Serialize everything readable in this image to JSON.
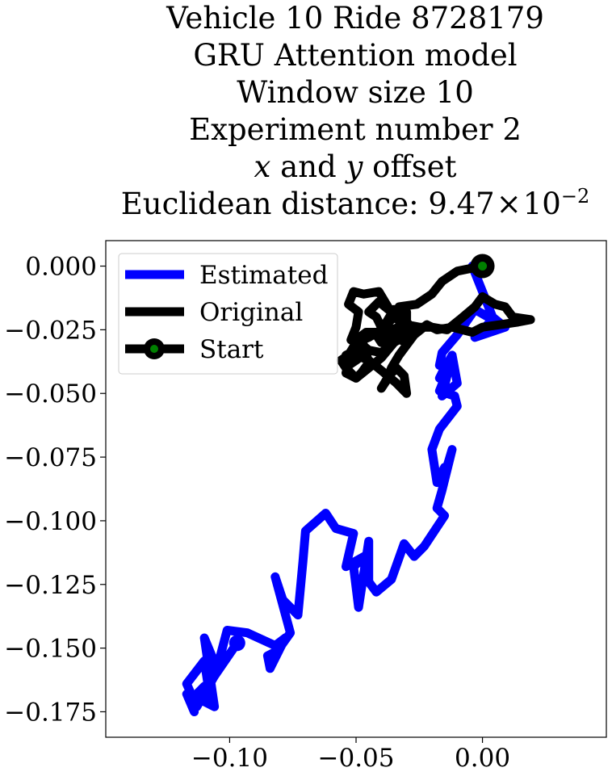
{
  "title": {
    "line1": "Vehicle 10 Ride 8728179",
    "line2": "GRU Attention model",
    "line3": "Window size 10",
    "line4": "Experiment number 2",
    "line5_x": "x",
    "line5_mid": " and ",
    "line5_y": "y",
    "line5_end": " offset",
    "line6_prefix": "Euclidean distance: 9.47",
    "line6_times": "×",
    "line6_base": "10",
    "line6_exp": "−2"
  },
  "chart_data": {
    "type": "line",
    "xlim": [
      -0.149,
      0.049
    ],
    "ylim": [
      -0.185,
      0.01
    ],
    "grid": false,
    "legend_position": "top-left",
    "x_ticks": [
      {
        "value": -0.1,
        "label": "−0.10"
      },
      {
        "value": -0.05,
        "label": "−0.05"
      },
      {
        "value": 0.0,
        "label": "0.00"
      }
    ],
    "y_ticks": [
      {
        "value": 0.0,
        "label": "0.000"
      },
      {
        "value": -0.025,
        "label": "−0.025"
      },
      {
        "value": -0.05,
        "label": "−0.050"
      },
      {
        "value": -0.075,
        "label": "−0.075"
      },
      {
        "value": -0.1,
        "label": "−0.100"
      },
      {
        "value": -0.125,
        "label": "−0.125"
      },
      {
        "value": -0.15,
        "label": "−0.150"
      },
      {
        "value": -0.175,
        "label": "−0.175"
      }
    ],
    "series": [
      {
        "name": "Estimated",
        "color": "#0000ff",
        "x": [
          0.0,
          -0.004,
          0.004,
          0.009,
          -0.003,
          0.004,
          -0.003,
          -0.01,
          -0.016,
          -0.017,
          -0.014,
          -0.017,
          -0.012,
          -0.01,
          -0.016,
          -0.015,
          -0.013,
          -0.017,
          -0.011,
          -0.01,
          -0.017,
          -0.02,
          -0.018,
          -0.015,
          -0.015,
          -0.012,
          -0.016,
          -0.018,
          -0.015,
          -0.023,
          -0.027,
          -0.031,
          -0.036,
          -0.042,
          -0.045,
          -0.045,
          -0.049,
          -0.051,
          -0.045,
          -0.054,
          -0.051,
          -0.058,
          -0.062,
          -0.07,
          -0.071,
          -0.073,
          -0.079,
          -0.082,
          -0.076,
          -0.081,
          -0.085,
          -0.084,
          -0.078,
          -0.082,
          -0.093,
          -0.101,
          -0.105,
          -0.11,
          -0.106,
          -0.112,
          -0.11,
          -0.115,
          -0.114,
          -0.117,
          -0.113,
          -0.115,
          -0.108,
          -0.11,
          -0.117,
          -0.113,
          -0.106,
          -0.097
        ],
        "y": [
          0.0,
          0.0,
          -0.02,
          -0.024,
          -0.028,
          -0.021,
          -0.017,
          -0.027,
          -0.034,
          -0.039,
          -0.038,
          -0.044,
          -0.035,
          -0.046,
          -0.051,
          -0.047,
          -0.039,
          -0.049,
          -0.051,
          -0.055,
          -0.064,
          -0.072,
          -0.085,
          -0.079,
          -0.082,
          -0.072,
          -0.088,
          -0.095,
          -0.098,
          -0.11,
          -0.114,
          -0.109,
          -0.123,
          -0.128,
          -0.124,
          -0.108,
          -0.134,
          -0.118,
          -0.113,
          -0.118,
          -0.105,
          -0.103,
          -0.097,
          -0.104,
          -0.116,
          -0.137,
          -0.131,
          -0.122,
          -0.144,
          -0.151,
          -0.153,
          -0.158,
          -0.146,
          -0.149,
          -0.144,
          -0.143,
          -0.158,
          -0.146,
          -0.173,
          -0.17,
          -0.165,
          -0.17,
          -0.175,
          -0.168,
          -0.17,
          -0.172,
          -0.168,
          -0.155,
          -0.164,
          -0.173,
          -0.161,
          -0.148
        ]
      },
      {
        "name": "Original",
        "color": "#000000",
        "x": [
          0.0,
          -0.01,
          -0.016,
          -0.02,
          -0.026,
          -0.033,
          -0.035,
          -0.038,
          -0.041,
          -0.047,
          -0.051,
          -0.053,
          -0.049,
          -0.05,
          -0.052,
          -0.047,
          -0.05,
          -0.054,
          -0.053,
          -0.05,
          -0.046,
          -0.045,
          -0.048,
          -0.05,
          -0.054,
          -0.056,
          -0.053,
          -0.05,
          -0.045,
          -0.04,
          -0.035,
          -0.032,
          -0.03,
          -0.03,
          -0.033,
          -0.037,
          -0.04,
          -0.042,
          -0.045,
          -0.041,
          -0.036,
          -0.031,
          -0.035,
          -0.04,
          -0.045,
          -0.05,
          -0.046,
          -0.04,
          -0.035,
          -0.03,
          -0.027,
          -0.032,
          -0.035,
          -0.038,
          -0.042,
          -0.04,
          -0.036,
          -0.03,
          -0.025,
          -0.02,
          -0.014,
          -0.009,
          -0.003,
          0.0,
          0.005,
          0.009,
          0.012,
          0.019,
          0.014,
          0.007,
          0.0,
          -0.004,
          -0.012,
          -0.018,
          -0.022,
          -0.027,
          -0.03,
          -0.033,
          -0.036,
          -0.038,
          -0.04,
          -0.037,
          -0.034,
          -0.031,
          -0.03,
          -0.034,
          -0.04,
          -0.045,
          -0.05,
          -0.053,
          -0.054,
          -0.05,
          -0.045,
          -0.04,
          -0.035,
          -0.03,
          -0.03
        ],
        "y": [
          0.0,
          -0.002,
          -0.006,
          -0.011,
          -0.015,
          -0.016,
          -0.02,
          -0.015,
          -0.01,
          -0.011,
          -0.01,
          -0.015,
          -0.018,
          -0.024,
          -0.029,
          -0.031,
          -0.033,
          -0.035,
          -0.039,
          -0.037,
          -0.034,
          -0.038,
          -0.042,
          -0.044,
          -0.04,
          -0.037,
          -0.035,
          -0.03,
          -0.028,
          -0.025,
          -0.02,
          -0.016,
          -0.018,
          -0.022,
          -0.026,
          -0.029,
          -0.024,
          -0.02,
          -0.018,
          -0.014,
          -0.018,
          -0.024,
          -0.03,
          -0.034,
          -0.033,
          -0.029,
          -0.026,
          -0.026,
          -0.028,
          -0.03,
          -0.025,
          -0.02,
          -0.017,
          -0.022,
          -0.027,
          -0.03,
          -0.025,
          -0.023,
          -0.024,
          -0.024,
          -0.025,
          -0.021,
          -0.016,
          -0.012,
          -0.015,
          -0.016,
          -0.02,
          -0.021,
          -0.022,
          -0.023,
          -0.024,
          -0.026,
          -0.024,
          -0.025,
          -0.023,
          -0.027,
          -0.031,
          -0.035,
          -0.04,
          -0.045,
          -0.048,
          -0.043,
          -0.04,
          -0.043,
          -0.05,
          -0.046,
          -0.041,
          -0.037,
          -0.035,
          -0.038,
          -0.042,
          -0.044,
          -0.04,
          -0.036,
          -0.03,
          -0.027,
          -0.025
        ]
      }
    ],
    "start": {
      "x": 0.0,
      "y": 0.0,
      "label": "Start",
      "color": "#008000"
    }
  }
}
